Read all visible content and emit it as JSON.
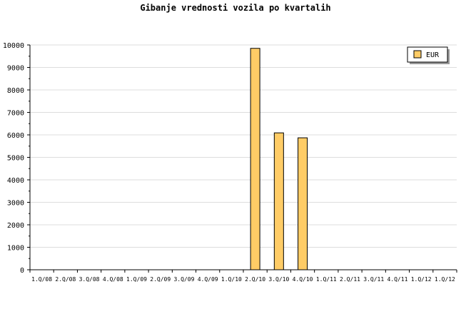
{
  "chart_data": {
    "type": "bar",
    "title": "Gibanje vrednosti vozila po kvartalih",
    "categories": [
      "1.Q/08",
      "2.Q/08",
      "3.Q/08",
      "4.Q/08",
      "1.Q/09",
      "2.Q/09",
      "3.Q/09",
      "4.Q/09",
      "1.Q/10",
      "2.Q/10",
      "3.Q/10",
      "4.Q/10",
      "1.Q/11",
      "2.Q/11",
      "3.Q/11",
      "4.Q/11",
      "1.Q/12",
      "1.Q/12"
    ],
    "series": [
      {
        "name": "EUR",
        "values": [
          0,
          0,
          0,
          0,
          0,
          0,
          0,
          0,
          0,
          9850,
          6090,
          5870,
          0,
          0,
          0,
          0,
          0,
          0
        ],
        "color": "#ffcc66"
      }
    ],
    "ylim": [
      0,
      10000
    ],
    "yticks": [
      0,
      1000,
      2000,
      3000,
      4000,
      5000,
      6000,
      7000,
      8000,
      9000,
      10000
    ],
    "grid": true,
    "legend": "top-right"
  }
}
